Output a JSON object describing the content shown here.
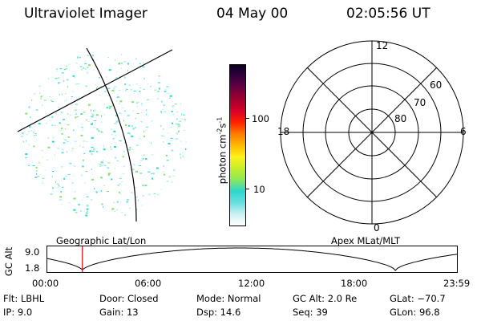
{
  "header": {
    "title": "Ultraviolet Imager",
    "date": "04 May 00",
    "time": "02:05:56 UT"
  },
  "colorbar": {
    "unit_label": "photon cm",
    "unit_exp_a": "-2",
    "unit_mid": "s",
    "unit_exp_b": "-1",
    "ticks": [
      {
        "label": "100",
        "value": 100
      },
      {
        "label": "10",
        "value": 10
      }
    ],
    "colors": [
      "#ffffff",
      "#cceff2",
      "#66e0e0",
      "#2bd6cc",
      "#8ce85a",
      "#c6ee2a",
      "#fff01a",
      "#ffb800",
      "#ff7a00",
      "#ff2200",
      "#d8002a",
      "#a10030",
      "#6a0040",
      "#35003f",
      "#0a0020"
    ]
  },
  "polar": {
    "mlt_labels": {
      "top": "12",
      "left": "18",
      "right": "6",
      "bottom": "0"
    },
    "lat_labels": [
      "60",
      "70",
      "80"
    ]
  },
  "labels": {
    "left_caption": "Geographic Lat/Lon",
    "right_caption": "Apex MLat/MLT"
  },
  "altitude_plot": {
    "ylabel": "GC Alt",
    "y_ticks": [
      "9.0",
      "1.8"
    ],
    "x_ticks": [
      "00:00",
      "06:00",
      "12:00",
      "18:00",
      "23:59"
    ],
    "current_time_hours": 2.1
  },
  "status": {
    "flt": "Flt: LBHL",
    "ip": "IP:  9.0",
    "door": "Door: Closed",
    "gain": "Gain: 13",
    "mode": "Mode: Normal",
    "dsp": "Dsp:    14.6",
    "gcalt": "GC Alt: 2.0 Re",
    "seq": "Seq: 39",
    "glat": "GLat: −70.7",
    "glon": "GLon:  96.8"
  }
}
